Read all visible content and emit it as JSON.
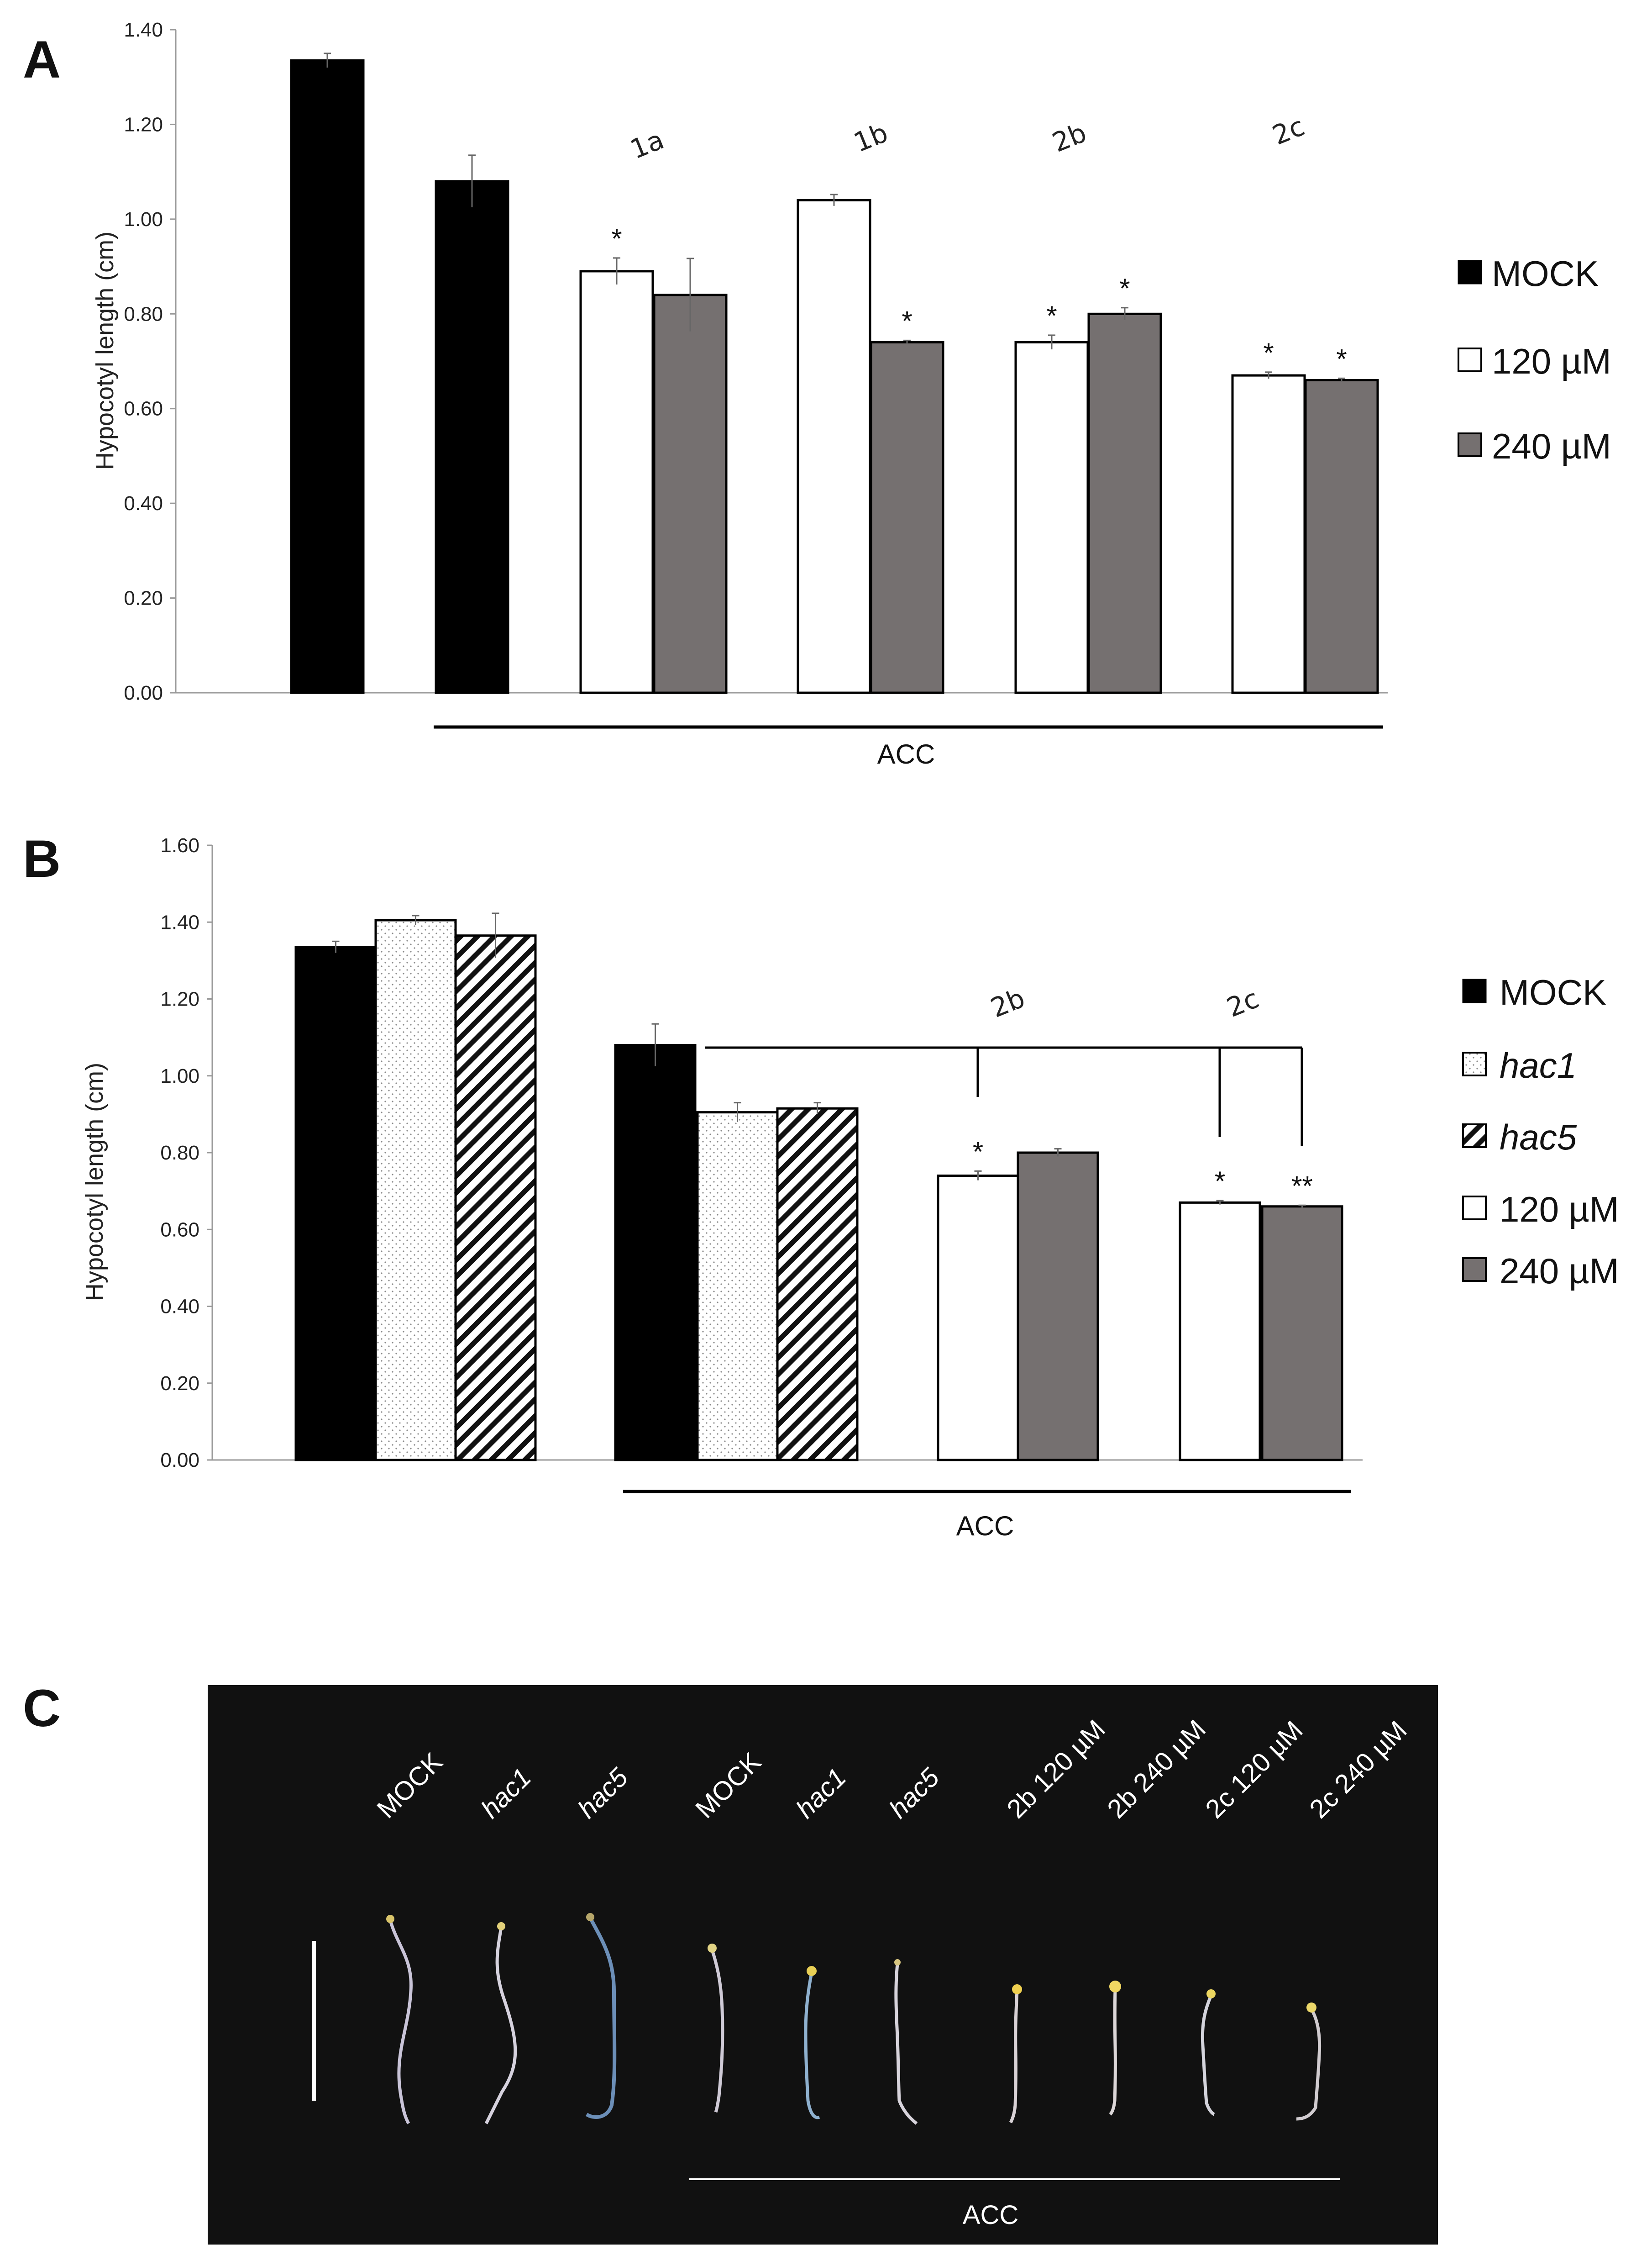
{
  "panels": {
    "a": "A",
    "b": "B",
    "c": "C"
  },
  "colors": {
    "mock": "#000000",
    "c120": "#ffffff",
    "c240": "#757070",
    "photo_bg": "#111111"
  },
  "chart_data": [
    {
      "type": "bar",
      "panel": "A",
      "ylabel": "Hypocotyl length (cm)",
      "xlabel": "ACC",
      "ylim": [
        0,
        1.4
      ],
      "yticks": [
        "0.00",
        "0.20",
        "0.40",
        "0.60",
        "0.80",
        "1.00",
        "1.20",
        "1.40"
      ],
      "groups": [
        "1a",
        "1b",
        "2b",
        "2c"
      ],
      "legend": [
        {
          "label": "MOCK",
          "style": "mock"
        },
        {
          "label": "120 µM",
          "style": "c120"
        },
        {
          "label": "240 µM",
          "style": "c240"
        }
      ],
      "bars": [
        {
          "series": "MOCK",
          "style": "mock",
          "value": 1.335,
          "error": 0.015,
          "star": ""
        },
        {
          "series": "MOCK",
          "style": "mock",
          "value": 1.08,
          "error": 0.055,
          "star": ""
        },
        {
          "series": "120 µM",
          "group": "1a",
          "style": "c120",
          "value": 0.89,
          "error": 0.028,
          "star": "*"
        },
        {
          "series": "240 µM",
          "group": "1a",
          "style": "c240",
          "value": 0.84,
          "error": 0.077,
          "star": ""
        },
        {
          "series": "120 µM",
          "group": "1b",
          "style": "c120",
          "value": 1.04,
          "error": 0.012,
          "star": ""
        },
        {
          "series": "240 µM",
          "group": "1b",
          "style": "c240",
          "value": 0.74,
          "error": 0.004,
          "star": "*"
        },
        {
          "series": "120 µM",
          "group": "2b",
          "style": "c120",
          "value": 0.74,
          "error": 0.015,
          "star": "*"
        },
        {
          "series": "240 µM",
          "group": "2b",
          "style": "c240",
          "value": 0.8,
          "error": 0.013,
          "star": "*"
        },
        {
          "series": "120 µM",
          "group": "2c",
          "style": "c120",
          "value": 0.67,
          "error": 0.007,
          "star": "*"
        },
        {
          "series": "240 µM",
          "group": "2c",
          "style": "c240",
          "value": 0.66,
          "error": 0.004,
          "star": "*"
        }
      ]
    },
    {
      "type": "bar",
      "panel": "B",
      "ylabel": "Hypocotyl length (cm)",
      "xlabel": "ACC",
      "ylim": [
        0,
        1.6
      ],
      "yticks": [
        "0.00",
        "0.20",
        "0.40",
        "0.60",
        "0.80",
        "1.00",
        "1.20",
        "1.40",
        "1.60"
      ],
      "groups": [
        "2b",
        "2c"
      ],
      "legend": [
        {
          "label": "MOCK",
          "style": "mock"
        },
        {
          "label": "hac1",
          "style": "hac1"
        },
        {
          "label": "hac5",
          "style": "hac5"
        },
        {
          "label": "120 µM",
          "style": "c120"
        },
        {
          "label": "240 µM",
          "style": "c240"
        }
      ],
      "bars": [
        {
          "series": "MOCK",
          "style": "mock",
          "value": 1.335,
          "error": 0.015,
          "star": ""
        },
        {
          "series": "hac1",
          "style": "hac1",
          "value": 1.405,
          "error": 0.012,
          "star": ""
        },
        {
          "series": "hac5",
          "style": "hac5",
          "value": 1.365,
          "error": 0.058,
          "star": ""
        },
        {
          "series": "MOCK",
          "style": "mock",
          "value": 1.08,
          "error": 0.055,
          "star": ""
        },
        {
          "series": "hac1",
          "style": "hac1",
          "value": 0.905,
          "error": 0.025,
          "star": ""
        },
        {
          "series": "hac5",
          "style": "hac5",
          "value": 0.915,
          "error": 0.015,
          "star": ""
        },
        {
          "series": "120 µM",
          "group": "2b",
          "style": "c120",
          "value": 0.74,
          "error": 0.012,
          "star": "*"
        },
        {
          "series": "240 µM",
          "group": "2b",
          "style": "c240",
          "value": 0.8,
          "error": 0.01,
          "star": ""
        },
        {
          "series": "120 µM",
          "group": "2c",
          "style": "c120",
          "value": 0.67,
          "error": 0.005,
          "star": "*"
        },
        {
          "series": "240 µM",
          "group": "2c",
          "style": "c240",
          "value": 0.66,
          "error": 0.003,
          "star": "**"
        }
      ]
    }
  ],
  "photo": {
    "acc_label": "ACC",
    "labels": [
      {
        "text": "MOCK",
        "italic": false
      },
      {
        "text": "hac1",
        "italic": true
      },
      {
        "text": "hac5",
        "italic": true
      },
      {
        "text": "MOCK",
        "italic": false
      },
      {
        "text": "hac1",
        "italic": true
      },
      {
        "text": "hac5",
        "italic": true
      },
      {
        "text": "2b 120 µM",
        "italic": false
      },
      {
        "text": "2b 240 µM",
        "italic": false
      },
      {
        "text": "2c 120 µM",
        "italic": false
      },
      {
        "text": "2c 240 µM",
        "italic": false
      }
    ]
  }
}
